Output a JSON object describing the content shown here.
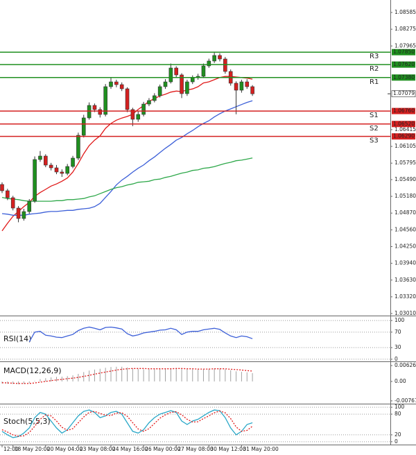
{
  "chart_data": [
    {
      "type": "candlestick",
      "categories": [
        "12:00",
        null,
        "18 May 20:00",
        null,
        null,
        null,
        null,
        null,
        "20 May 04:00",
        null,
        null,
        null,
        null,
        null,
        "23 May 08:00",
        null,
        null,
        null,
        null,
        null,
        "24 May 16:00",
        null,
        null,
        null,
        null,
        null,
        "26 May 00:00",
        null,
        null,
        null,
        null,
        null,
        "27 May 08:00",
        null,
        null,
        null,
        null,
        null,
        "30 May 12:00",
        null,
        null,
        null,
        null,
        null,
        "31 May 20:00",
        null,
        null
      ],
      "open": [
        1.054,
        1.05284,
        1.05155,
        1.04963,
        1.0477,
        1.04898,
        1.05091,
        1.05862,
        1.05926,
        1.05759,
        1.05708,
        1.05631,
        1.05605,
        1.05733,
        1.05888,
        1.06311,
        1.06633,
        1.06864,
        1.06787,
        1.06697,
        1.07211,
        1.073,
        1.07249,
        1.07172,
        1.06787,
        1.06607,
        1.06697,
        1.06889,
        1.06954,
        1.07044,
        1.07211,
        1.073,
        1.07557,
        1.07429,
        1.07082,
        1.073,
        1.07378,
        1.07403,
        1.07596,
        1.07686,
        1.07789,
        1.07724,
        1.07493,
        1.07275,
        1.07146,
        1.073,
        1.07211
      ],
      "high": [
        1.0544,
        1.0532,
        1.0519,
        1.05,
        1.0495,
        1.0513,
        1.0592,
        1.0602,
        1.0596,
        1.058,
        1.0576,
        1.0568,
        1.0578,
        1.0593,
        1.0636,
        1.0669,
        1.0692,
        1.069,
        1.0683,
        1.0726,
        1.0738,
        1.0734,
        1.0729,
        1.072,
        1.0682,
        1.0675,
        1.0693,
        1.07,
        1.0709,
        1.0725,
        1.0735,
        1.0764,
        1.0759,
        1.0746,
        1.0734,
        1.0742,
        1.0745,
        1.0764,
        1.0773,
        1.0786,
        1.0783,
        1.0776,
        1.0753,
        1.0731,
        1.0734,
        1.0735,
        1.0724
      ],
      "low": [
        1.0524,
        1.0511,
        1.0492,
        1.047,
        1.0473,
        1.0486,
        1.0506,
        1.0582,
        1.0572,
        1.0566,
        1.0559,
        1.0554,
        1.0557,
        1.057,
        1.0585,
        1.0627,
        1.066,
        1.0674,
        1.0664,
        1.0666,
        1.0717,
        1.072,
        1.0713,
        1.0674,
        1.0648,
        1.0656,
        1.0666,
        1.0685,
        1.0692,
        1.0701,
        1.0717,
        1.0727,
        1.0739,
        1.07,
        1.0704,
        1.0726,
        1.0734,
        1.0737,
        1.0756,
        1.0765,
        1.0768,
        1.0745,
        1.0723,
        1.067,
        1.071,
        1.0717,
        1.0704
      ],
      "close": [
        1.05284,
        1.05155,
        1.04963,
        1.0477,
        1.04898,
        1.05091,
        1.05862,
        1.05926,
        1.05759,
        1.05708,
        1.05631,
        1.05605,
        1.05733,
        1.05888,
        1.06311,
        1.06633,
        1.06864,
        1.06787,
        1.06697,
        1.07211,
        1.073,
        1.07249,
        1.07172,
        1.06787,
        1.06607,
        1.06697,
        1.06889,
        1.06954,
        1.07044,
        1.07211,
        1.073,
        1.07557,
        1.07429,
        1.07082,
        1.073,
        1.07378,
        1.07403,
        1.07596,
        1.07686,
        1.07789,
        1.07724,
        1.07493,
        1.07275,
        1.07146,
        1.073,
        1.07211,
        1.07079
      ],
      "up_color": "#1f8f1f",
      "down_color": "#d42020",
      "moving_averages": [
        {
          "color": "#e01818",
          "values": [
            1.0454,
            1.0468,
            1.0481,
            1.049,
            1.0499,
            1.0507,
            1.0518,
            1.0525,
            1.0531,
            1.0537,
            1.0541,
            1.0546,
            1.0552,
            1.0563,
            1.0579,
            1.0597,
            1.0612,
            1.0622,
            1.063,
            1.0644,
            1.0653,
            1.0659,
            1.0663,
            1.0666,
            1.067,
            1.0679,
            1.0686,
            1.0694,
            1.0699,
            1.0704,
            1.0707,
            1.0711,
            1.0713,
            1.0712,
            1.0715,
            1.0717,
            1.0721,
            1.0728,
            1.073,
            1.0734,
            1.0738,
            1.074,
            1.074,
            1.0739,
            1.0738,
            1.0737,
            1.0735
          ]
        },
        {
          "color": "#3c5fd8",
          "values": [
            1.0486,
            1.0485,
            1.0483,
            1.0483,
            1.0483,
            1.0485,
            1.0486,
            1.0487,
            1.0489,
            1.049,
            1.049,
            1.0491,
            1.0492,
            1.0492,
            1.0494,
            1.0495,
            1.0496,
            1.0499,
            1.0505,
            1.0516,
            1.0527,
            1.0539,
            1.0548,
            1.0555,
            1.0563,
            1.057,
            1.0576,
            1.0584,
            1.0591,
            1.0599,
            1.0607,
            1.0614,
            1.0622,
            1.0627,
            1.0634,
            1.064,
            1.0647,
            1.0653,
            1.0658,
            1.0665,
            1.0671,
            1.0676,
            1.068,
            1.0684,
            1.0688,
            1.0692,
            1.0695
          ]
        },
        {
          "color": "#2ea84a",
          "values": [
            1.0516,
            1.0514,
            1.0513,
            1.0512,
            1.051,
            1.0509,
            1.0509,
            1.0509,
            1.0509,
            1.0509,
            1.051,
            1.051,
            1.0512,
            1.0512,
            1.0513,
            1.0514,
            1.0517,
            1.0519,
            1.0523,
            1.0527,
            1.0531,
            1.0534,
            1.0536,
            1.0539,
            1.0541,
            1.0544,
            1.0545,
            1.0546,
            1.0549,
            1.055,
            1.0553,
            1.0555,
            1.0558,
            1.0561,
            1.0563,
            1.0566,
            1.0567,
            1.057,
            1.0571,
            1.0573,
            1.0576,
            1.0579,
            1.0581,
            1.0584,
            1.0585,
            1.0587,
            1.0589
          ]
        }
      ],
      "levels": {
        "names": [
          "R3",
          "R2",
          "R1",
          "S1",
          "S2",
          "S3"
        ],
        "values": [
          1.0785,
          1.0762,
          1.0738,
          1.0676,
          1.0652,
          1.0629
        ],
        "value_labels": [
          "1.07850",
          "1.07620",
          "1.07380",
          "1.06760",
          "1.06520",
          "1.06290"
        ],
        "colors": [
          "#1f8f1f",
          "#1f8f1f",
          "#1f8f1f",
          "#d42020",
          "#d42020",
          "#d42020"
        ]
      },
      "ylim": [
        1.02972,
        1.08816
      ],
      "yticks": [
        1.08585,
        1.08275,
        1.07965,
        1.06415,
        1.06105,
        1.05795,
        {
          "value": 1.0549,
          "label": "1.05490"
        },
        {
          "value": 1.0518,
          "label": "1.05180"
        },
        {
          "value": 1.0487,
          "label": "1.04870"
        },
        {
          "value": 1.0456,
          "label": "1.04560"
        },
        {
          "value": 1.0425,
          "label": "1.04250"
        },
        {
          "value": 1.0394,
          "label": "1.03940"
        },
        {
          "value": 1.0363,
          "label": "1.03630"
        },
        {
          "value": 1.0332,
          "label": "1.03320"
        },
        {
          "value": 1.0301,
          "label": "1.03010"
        }
      ]
    },
    {
      "type": "line",
      "title": "RSI(14)",
      "series": [
        {
          "color": "#3c5fd8",
          "values": [
            null,
            null,
            null,
            null,
            null,
            45,
            70,
            72,
            62,
            60,
            57,
            56,
            60,
            64,
            74,
            80,
            83,
            80,
            76,
            82,
            83,
            81,
            78,
            66,
            60,
            63,
            68,
            70,
            72,
            75,
            76,
            80,
            76,
            64,
            70,
            72,
            72,
            76,
            78,
            80,
            77,
            68,
            60,
            56,
            60,
            58,
            53
          ]
        }
      ],
      "ylim": [
        -5.5,
        110.9
      ],
      "yticks": [
        100,
        70,
        30,
        0
      ],
      "tick_lines": true
    },
    {
      "type": "histogram",
      "title": "MACD(12,26,9)",
      "values": [
        -0.0008,
        -0.0009,
        -0.001,
        -0.0011,
        -0.001,
        -0.0007,
        0.0002,
        0.0009,
        0.0013,
        0.0016,
        0.0018,
        0.0019,
        0.0021,
        0.0024,
        0.003,
        0.0037,
        0.0043,
        0.0047,
        0.005,
        0.0054,
        0.0057,
        0.0058,
        0.0058,
        0.0055,
        0.0051,
        0.0049,
        0.0048,
        0.0048,
        0.0048,
        0.0049,
        0.005,
        0.0052,
        0.0052,
        0.0049,
        0.0048,
        0.0048,
        0.0048,
        0.0049,
        0.005,
        0.0051,
        0.0051,
        0.0048,
        0.0044,
        0.004,
        0.0038,
        0.0036,
        0.0033
      ],
      "color": "#a0a0a0",
      "series": [
        {
          "color": "#e01818",
          "values": [
            -0.0005,
            -0.0006,
            -0.0007,
            -0.0008,
            -0.0008,
            -0.0008,
            -0.0006,
            -0.0003,
            0.0,
            0.0003,
            0.0006,
            0.0008,
            0.0011,
            0.0013,
            0.0016,
            0.002,
            0.0024,
            0.0029,
            0.0033,
            0.0037,
            0.0041,
            0.0045,
            0.0048,
            0.005,
            0.0051,
            0.0051,
            0.0051,
            0.005,
            0.005,
            0.005,
            0.005,
            0.005,
            0.0051,
            0.0051,
            0.005,
            0.005,
            0.0049,
            0.0049,
            0.0049,
            0.005,
            0.005,
            0.005,
            0.0048,
            0.0047,
            0.0045,
            0.0043,
            0.0041
          ],
          "dashed": true
        }
      ],
      "ylim": [
        -0.00879,
        0.00766
      ],
      "yticks": [
        0.006268,
        {
          "value": 0,
          "label": "0.00"
        },
        -0.007675
      ],
      "tick_lines": false
    },
    {
      "type": "line",
      "title": "Stoch(5,5,3)",
      "series": [
        {
          "color": "#2aa8c8",
          "values": [
            30,
            20,
            12,
            15,
            25,
            40,
            70,
            85,
            80,
            60,
            40,
            25,
            35,
            55,
            75,
            88,
            92,
            85,
            70,
            75,
            85,
            88,
            80,
            55,
            30,
            25,
            35,
            55,
            70,
            80,
            85,
            90,
            85,
            60,
            50,
            60,
            65,
            75,
            85,
            92,
            90,
            70,
            40,
            20,
            30,
            50,
            55
          ]
        },
        {
          "color": "#e01818",
          "values": [
            35,
            28,
            20,
            16,
            17,
            27,
            45,
            65,
            78,
            75,
            60,
            42,
            33,
            38,
            55,
            72,
            85,
            88,
            82,
            77,
            76,
            83,
            84,
            74,
            55,
            37,
            30,
            38,
            53,
            68,
            78,
            85,
            87,
            78,
            65,
            57,
            58,
            67,
            75,
            84,
            89,
            84,
            67,
            43,
            30,
            33,
            45
          ],
          "dashed": true
        }
      ],
      "ylim": [
        -8.3,
        108.3
      ],
      "yticks": [
        100,
        80,
        20,
        0
      ],
      "tick_lines": true
    }
  ]
}
